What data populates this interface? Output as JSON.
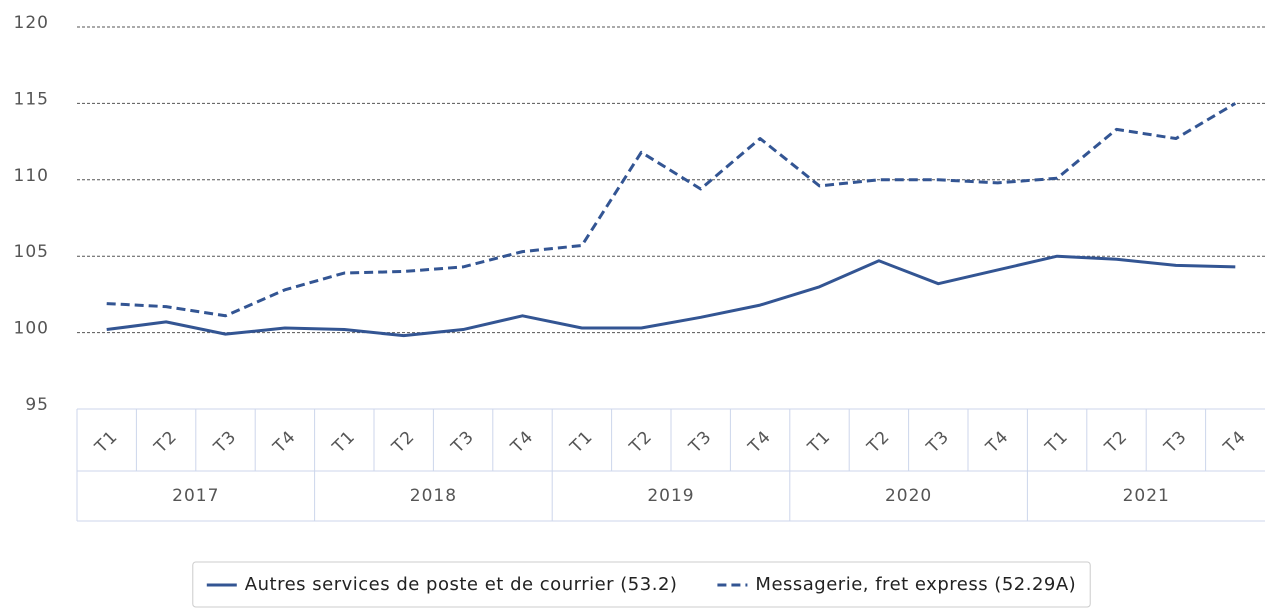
{
  "chart_data": {
    "type": "line",
    "categories": [
      "T1",
      "T2",
      "T3",
      "T4",
      "T1",
      "T2",
      "T3",
      "T4",
      "T1",
      "T2",
      "T3",
      "T4",
      "T1",
      "T2",
      "T3",
      "T4",
      "T1",
      "T2",
      "T3",
      "T4"
    ],
    "category_groups": [
      "2017",
      "2018",
      "2019",
      "2020",
      "2021"
    ],
    "series": [
      {
        "name": "Autres services de poste et de courrier (53.2)",
        "color": "#335593",
        "dash": false,
        "values": [
          100.2,
          100.7,
          99.9,
          100.3,
          100.2,
          99.8,
          100.2,
          101.1,
          100.3,
          100.3,
          101.0,
          101.8,
          103.0,
          104.7,
          103.2,
          104.1,
          105.0,
          104.8,
          104.4,
          104.3
        ]
      },
      {
        "name": "Messagerie, fret express (52.29A)",
        "color": "#335593",
        "dash": true,
        "values": [
          101.9,
          101.7,
          101.1,
          102.8,
          103.9,
          104.0,
          104.3,
          105.3,
          105.7,
          111.8,
          109.4,
          112.7,
          109.6,
          110.0,
          110.0,
          109.8,
          110.1,
          113.3,
          112.7,
          115.0
        ]
      }
    ],
    "ylim": [
      95,
      120
    ],
    "yticks": [
      95,
      100,
      105,
      110,
      115,
      120
    ],
    "grid": true,
    "legend": "bottom"
  }
}
